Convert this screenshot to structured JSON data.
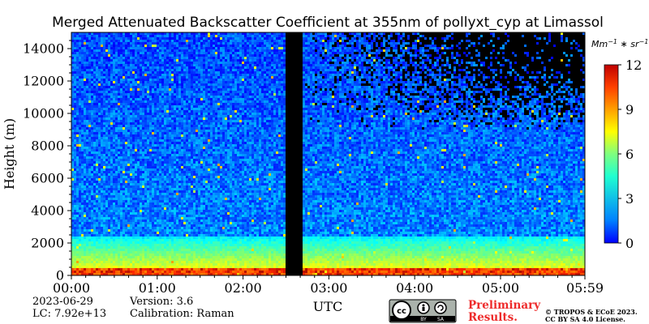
{
  "chart_data": {
    "type": "heatmap",
    "title": "Merged Attenuated Backscatter Coefficient at 355nm of pollyxt_cyp at Limassol",
    "xlabel": "UTC",
    "ylabel": "Height (m)",
    "x_ticks": [
      "00:00",
      "01:00",
      "02:00",
      "03:00",
      "04:00",
      "05:00",
      "05:59"
    ],
    "x_range": [
      "00:00",
      "05:59"
    ],
    "y_ticks": [
      0,
      2000,
      4000,
      6000,
      8000,
      10000,
      12000,
      14000
    ],
    "y_range": [
      0,
      15000
    ],
    "colorbar": {
      "unit": "Mm^-1 * sr^-1",
      "range": [
        0,
        12
      ],
      "ticks": [
        0,
        3,
        6,
        9,
        12
      ],
      "colormap": "jet"
    },
    "no_data_periods": [
      [
        "02:31",
        "02:41"
      ]
    ],
    "profile_structure": {
      "surface_layer_top_m": 500,
      "boundary_layer_top_m": 2500
    }
  },
  "meta": {
    "date": "2023-06-29",
    "lc": "LC: 7.92e+13",
    "version": "Version: 3.6",
    "calibration": "Calibration: Raman"
  },
  "footer": {
    "preliminary_line1": "Preliminary",
    "preliminary_line2": "Results.",
    "copyright_line1": "© TROPOS & ECoE 2023.",
    "copyright_line2": "CC BY SA 4.0 License.",
    "cc_badge": "cc-by-sa-badge"
  }
}
